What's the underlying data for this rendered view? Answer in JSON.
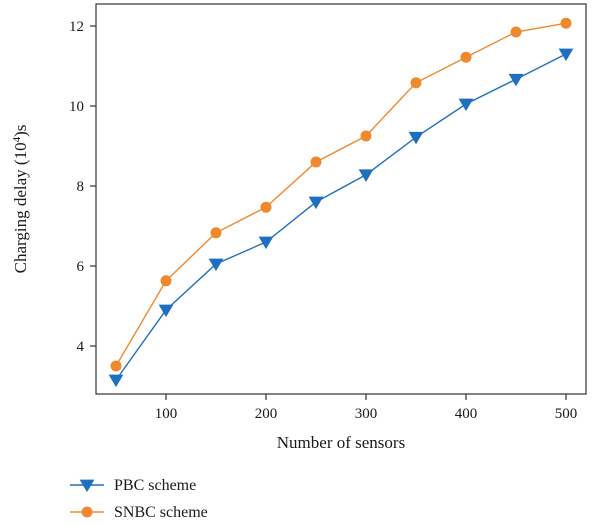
{
  "colors": {
    "pbc": "#1f6fc0",
    "snbc": "#f0882e",
    "axis": "#333333"
  },
  "chart_data": {
    "type": "line",
    "title": "",
    "xlabel": "Number of sensors",
    "ylabel_main": "Charging delay (10",
    "ylabel_sup": "4",
    "ylabel_tail": ")s",
    "xlim": [
      30,
      520
    ],
    "ylim": [
      2.8,
      12.55
    ],
    "grid": false,
    "legend_position": "bottom-left",
    "x": [
      50,
      100,
      150,
      200,
      250,
      300,
      350,
      400,
      450,
      500
    ],
    "xticks": [
      100,
      200,
      300,
      400,
      500
    ],
    "yticks": [
      4,
      6,
      8,
      10,
      12
    ],
    "series": [
      {
        "name": "PBC scheme",
        "marker": "triangle-down",
        "color_key": "pbc",
        "values": [
          3.15,
          4.9,
          6.05,
          6.6,
          7.6,
          8.28,
          9.22,
          10.05,
          10.67,
          11.3
        ]
      },
      {
        "name": "SNBC scheme",
        "marker": "circle",
        "color_key": "snbc",
        "values": [
          3.5,
          5.63,
          6.83,
          7.47,
          8.6,
          9.25,
          10.58,
          11.22,
          11.85,
          12.07
        ]
      }
    ]
  }
}
